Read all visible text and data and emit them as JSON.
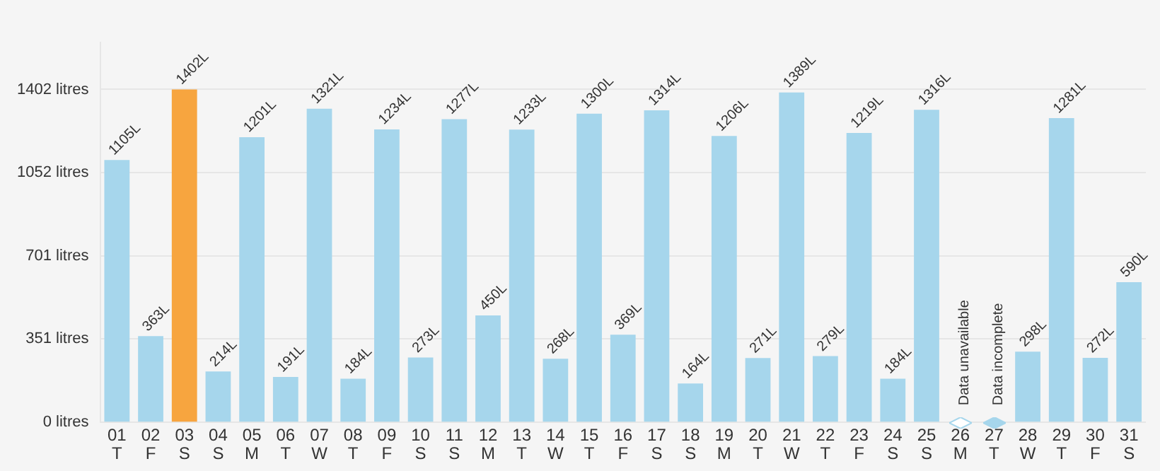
{
  "chart_data": {
    "type": "bar",
    "categories": [
      "01\nT",
      "02\nF",
      "03\nS",
      "04\nS",
      "05\nM",
      "06\nT",
      "07\nW",
      "08\nT",
      "09\nF",
      "10\nS",
      "11\nS",
      "12\nM",
      "13\nT",
      "14\nW",
      "15\nT",
      "16\nF",
      "17\nS",
      "18\nS",
      "19\nM",
      "20\nT",
      "21\nW",
      "22\nT",
      "23\nF",
      "24\nS",
      "25\nS",
      "26\nM",
      "27\nT",
      "28\nW",
      "29\nT",
      "30\nF",
      "31\nS"
    ],
    "values": [
      1105,
      363,
      1402,
      214,
      1201,
      191,
      1321,
      184,
      1234,
      273,
      1277,
      450,
      1233,
      268,
      1300,
      369,
      1314,
      164,
      1206,
      271,
      1389,
      279,
      1219,
      184,
      1316,
      null,
      null,
      298,
      1281,
      272,
      590
    ],
    "colors": [
      "#a6d6ec",
      "#a6d6ec",
      "#f7a53f",
      "#a6d6ec",
      "#a6d6ec",
      "#a6d6ec",
      "#a6d6ec",
      "#a6d6ec",
      "#a6d6ec",
      "#a6d6ec",
      "#a6d6ec",
      "#a6d6ec",
      "#a6d6ec",
      "#a6d6ec",
      "#a6d6ec",
      "#a6d6ec",
      "#a6d6ec",
      "#a6d6ec",
      "#a6d6ec",
      "#a6d6ec",
      "#a6d6ec",
      "#a6d6ec",
      "#a6d6ec",
      "#a6d6ec",
      "#a6d6ec",
      "#a6d6ec",
      "#a6d6ec",
      "#a6d6ec",
      "#a6d6ec",
      "#a6d6ec",
      "#a6d6ec"
    ],
    "value_labels": [
      "1105L",
      "363L",
      "1402L",
      "214L",
      "1201L",
      "191L",
      "1321L",
      "184L",
      "1234L",
      "273L",
      "1277L",
      "450L",
      "1233L",
      "268L",
      "1300L",
      "369L",
      "1314L",
      "164L",
      "1206L",
      "271L",
      "1389L",
      "279L",
      "1219L",
      "184L",
      "1316L",
      null,
      null,
      "298L",
      "1281L",
      "272L",
      "590L"
    ],
    "annotations": [
      {
        "text": "Data unavailable",
        "x": "26\nM",
        "y": 0
      },
      {
        "text": "Data incomplete",
        "x": "27\nT",
        "y": 0
      }
    ],
    "ylim": [
      0,
      1600
    ],
    "yticks": [
      {
        "value": 0,
        "label": "0 litres"
      },
      {
        "value": 351,
        "label": "351 litres"
      },
      {
        "value": 701,
        "label": "701 litres"
      },
      {
        "value": 1052,
        "label": "1052 litres"
      },
      {
        "value": 1402,
        "label": "1402 litres"
      }
    ],
    "grid": "y",
    "legend": false
  }
}
